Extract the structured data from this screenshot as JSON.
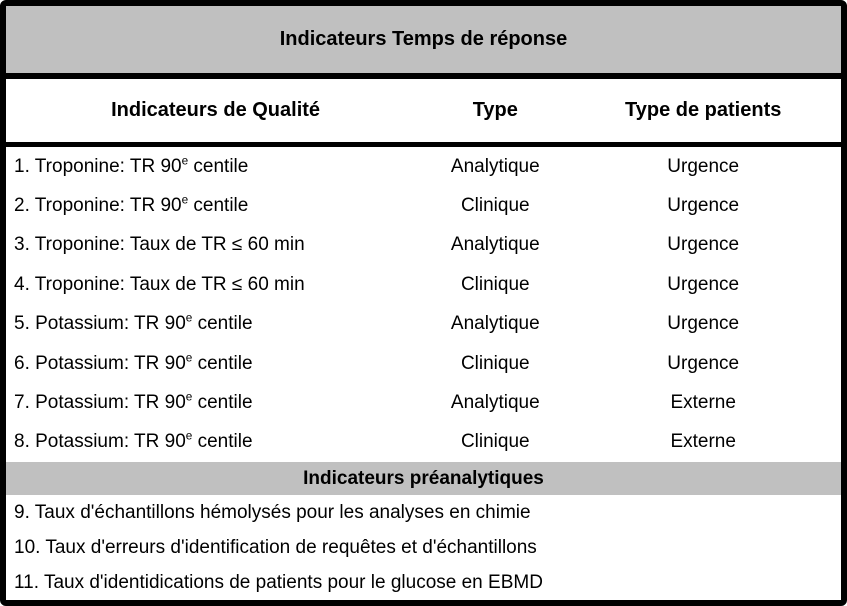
{
  "table": {
    "title": "Indicateurs Temps de réponse",
    "columns": {
      "indicator": "Indicateurs de Qualité",
      "type": "Type",
      "patients": "Type de patients"
    },
    "rows": [
      {
        "pre": "1. Troponine: TR 90",
        "sup": "e",
        "post": " centile",
        "type": "Analytique",
        "patients": "Urgence"
      },
      {
        "pre": "2. Troponine: TR 90",
        "sup": "e",
        "post": " centile",
        "type": "Clinique",
        "patients": "Urgence"
      },
      {
        "pre": "3. Troponine: Taux de TR ≤ 60 min",
        "sup": "",
        "post": "",
        "type": "Analytique",
        "patients": "Urgence"
      },
      {
        "pre": "4. Troponine: Taux de TR ≤ 60 min",
        "sup": "",
        "post": "",
        "type": "Clinique",
        "patients": "Urgence"
      },
      {
        "pre": "5. Potassium: TR 90",
        "sup": "e",
        "post": " centile",
        "type": "Analytique",
        "patients": "Urgence"
      },
      {
        "pre": "6. Potassium: TR 90",
        "sup": "e",
        "post": " centile",
        "type": "Clinique",
        "patients": "Urgence"
      },
      {
        "pre": "7. Potassium: TR 90",
        "sup": "e",
        "post": " centile",
        "type": "Analytique",
        "patients": "Externe"
      },
      {
        "pre": "8. Potassium: TR 90",
        "sup": "e",
        "post": " centile",
        "type": "Clinique",
        "patients": "Externe"
      }
    ],
    "section2": {
      "title": "Indicateurs préanalytiques",
      "rows": [
        "9. Taux d'échantillons hémolysés pour les analyses en chimie",
        "10. Taux d'erreurs d'identification de requêtes et d'échantillons",
        "11. Taux d'identidications de patients pour le glucose en EBMD"
      ]
    },
    "colors": {
      "band_gray": "#C0C0C0",
      "border_black": "#000000",
      "background": "#FFFFFF"
    }
  }
}
